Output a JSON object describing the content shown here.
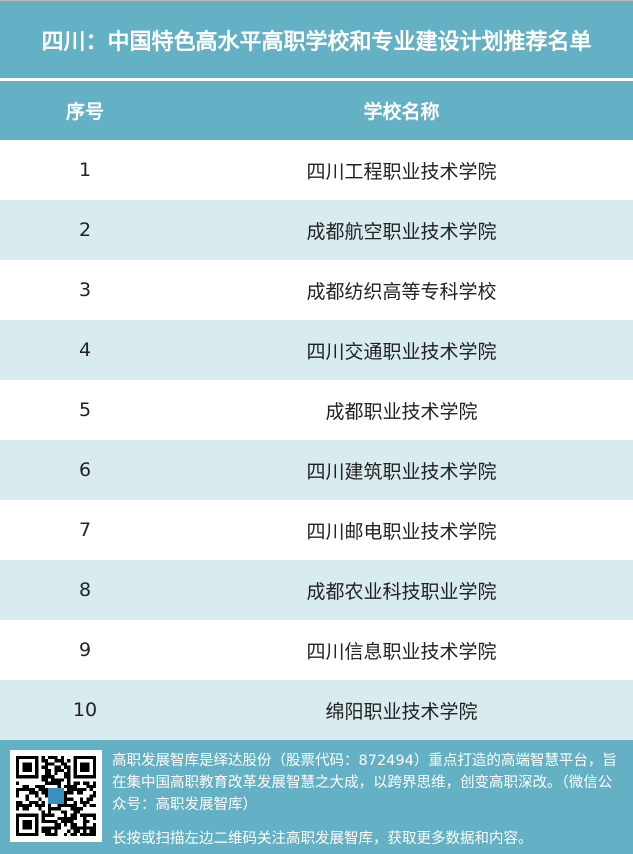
{
  "title": "四川：中国特色高水平高职学校和专业建设计划推荐名单",
  "table": {
    "headers": [
      "序号",
      "学校名称"
    ],
    "rows": [
      {
        "no": "1",
        "name": "四川工程职业技术学院"
      },
      {
        "no": "2",
        "name": "成都航空职业技术学院"
      },
      {
        "no": "3",
        "name": "成都纺织高等专科学校"
      },
      {
        "no": "4",
        "name": "四川交通职业技术学院"
      },
      {
        "no": "5",
        "name": "成都职业技术学院"
      },
      {
        "no": "6",
        "name": "四川建筑职业技术学院"
      },
      {
        "no": "7",
        "name": "四川邮电职业技术学院"
      },
      {
        "no": "8",
        "name": "成都农业科技职业学院"
      },
      {
        "no": "9",
        "name": "四川信息职业技术学院"
      },
      {
        "no": "10",
        "name": "绵阳职业技术学院"
      }
    ]
  },
  "footer": {
    "intro": "高职发展智库是绎达股份（股票代码：872494）重点打造的高端智慧平台，旨在集中国高职教育改革发展智慧之大成，以跨界思维，创变高职深改。（微信公众号：高职发展智库）",
    "cta": "长按或扫描左边二维码关注高职发展智库，获取更多数据和内容。"
  },
  "colors": {
    "header": "#64b0c4",
    "stripe": "#d8ebef"
  }
}
